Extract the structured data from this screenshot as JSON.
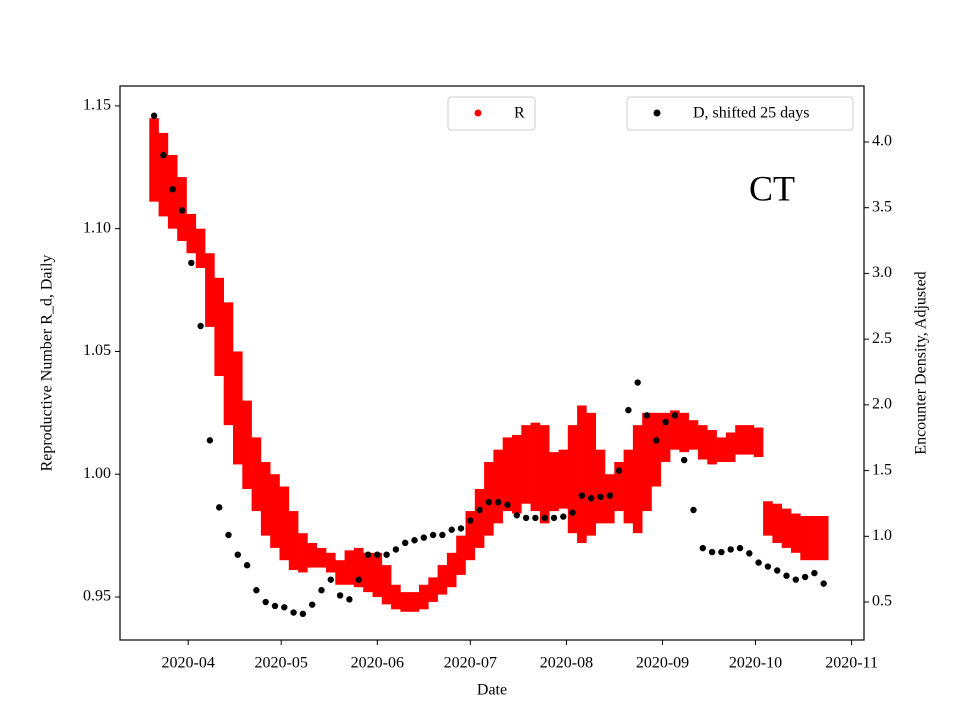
{
  "chart_data": {
    "type": "errorbar-scatter",
    "xlabel": "Date",
    "ylabel": "Reproductive Number R_d, Daily",
    "y2label": "Encounter Density, Adjusted",
    "annotation": "CT",
    "x": [
      "2020-03-21",
      "2020-03-24",
      "2020-03-27",
      "2020-03-30",
      "2020-04-02",
      "2020-04-05",
      "2020-04-08",
      "2020-04-11",
      "2020-04-14",
      "2020-04-17",
      "2020-04-20",
      "2020-04-23",
      "2020-04-26",
      "2020-04-29",
      "2020-05-02",
      "2020-05-05",
      "2020-05-08",
      "2020-05-11",
      "2020-05-14",
      "2020-05-17",
      "2020-05-20",
      "2020-05-23",
      "2020-05-26",
      "2020-05-29",
      "2020-06-01",
      "2020-06-04",
      "2020-06-07",
      "2020-06-10",
      "2020-06-13",
      "2020-06-16",
      "2020-06-19",
      "2020-06-22",
      "2020-06-25",
      "2020-06-28",
      "2020-07-01",
      "2020-07-04",
      "2020-07-07",
      "2020-07-10",
      "2020-07-13",
      "2020-07-16",
      "2020-07-19",
      "2020-07-22",
      "2020-07-25",
      "2020-07-28",
      "2020-07-31",
      "2020-08-03",
      "2020-08-06",
      "2020-08-09",
      "2020-08-12",
      "2020-08-15",
      "2020-08-18",
      "2020-08-21",
      "2020-08-24",
      "2020-08-27",
      "2020-08-30",
      "2020-09-02",
      "2020-09-05",
      "2020-09-08",
      "2020-09-11",
      "2020-09-14",
      "2020-09-17",
      "2020-09-20",
      "2020-09-23",
      "2020-09-26",
      "2020-09-29",
      "2020-10-02",
      "2020-10-05",
      "2020-10-08",
      "2020-10-11",
      "2020-10-14",
      "2020-10-17",
      "2020-10-20",
      "2020-10-23"
    ],
    "series": [
      {
        "name": "R",
        "color": "#ff0000",
        "axis": "y",
        "values": [
          1.128,
          1.122,
          1.115,
          1.108,
          1.098,
          1.092,
          1.075,
          1.06,
          1.045,
          1.027,
          1.012,
          1.0,
          0.99,
          0.985,
          0.98,
          0.973,
          0.968,
          0.967,
          0.966,
          0.964,
          0.96,
          0.962,
          0.962,
          0.96,
          0.959,
          0.955,
          0.95,
          0.948,
          0.948,
          0.95,
          0.953,
          0.957,
          0.961,
          0.967,
          0.975,
          0.982,
          0.99,
          0.995,
          1.0,
          1.0,
          1.004,
          1.003,
          1.0,
          0.997,
          0.998,
          0.998,
          1.0,
          1.0,
          0.995,
          0.99,
          0.995,
          0.995,
          0.998,
          1.005,
          1.01,
          1.015,
          1.018,
          1.017,
          1.016,
          1.013,
          1.011,
          1.01,
          1.011,
          1.014,
          1.014,
          1.013,
          0.982,
          0.98,
          0.978,
          0.976,
          0.974,
          0.974,
          0.974
        ],
        "errors": [
          0.017,
          0.017,
          0.015,
          0.013,
          0.008,
          0.008,
          0.015,
          0.02,
          0.025,
          0.023,
          0.018,
          0.015,
          0.015,
          0.015,
          0.015,
          0.012,
          0.008,
          0.005,
          0.004,
          0.004,
          0.005,
          0.007,
          0.008,
          0.008,
          0.009,
          0.008,
          0.005,
          0.004,
          0.004,
          0.005,
          0.005,
          0.006,
          0.007,
          0.008,
          0.01,
          0.012,
          0.015,
          0.015,
          0.015,
          0.016,
          0.016,
          0.018,
          0.02,
          0.012,
          0.012,
          0.022,
          0.028,
          0.025,
          0.015,
          0.01,
          0.01,
          0.015,
          0.022,
          0.02,
          0.015,
          0.01,
          0.008,
          0.008,
          0.006,
          0.007,
          0.007,
          0.005,
          0.006,
          0.006,
          0.006,
          0.006,
          0.007,
          0.008,
          0.008,
          0.008,
          0.009,
          0.009,
          0.009
        ]
      },
      {
        "name": "D, shifted 25 days",
        "color": "#000000",
        "axis": "y2",
        "values": [
          4.2,
          3.9,
          3.64,
          3.48,
          3.08,
          2.6,
          1.73,
          1.22,
          1.01,
          0.86,
          0.78,
          0.59,
          0.5,
          0.47,
          0.46,
          0.42,
          0.41,
          0.48,
          0.59,
          0.67,
          0.55,
          0.52,
          0.67,
          0.86,
          0.86,
          0.86,
          0.9,
          0.95,
          0.97,
          0.99,
          1.01,
          1.01,
          1.05,
          1.06,
          1.12,
          1.2,
          1.26,
          1.26,
          1.24,
          1.16,
          1.14,
          1.14,
          1.14,
          1.14,
          1.15,
          1.18,
          1.31,
          1.29,
          1.3,
          1.31,
          1.5,
          1.96,
          2.17,
          1.92,
          1.73,
          1.87,
          1.92,
          1.58,
          1.2,
          0.91,
          0.88,
          0.88,
          0.9,
          0.91,
          0.87,
          0.8,
          0.77,
          0.74,
          0.7,
          0.67,
          0.69,
          0.72,
          0.64
        ]
      }
    ],
    "xlim": [
      "2020-03-10",
      "2020-11-05"
    ],
    "xticks": [
      {
        "value": "2020-04-01",
        "label": "2020-04"
      },
      {
        "value": "2020-05-01",
        "label": "2020-05"
      },
      {
        "value": "2020-06-01",
        "label": "2020-06"
      },
      {
        "value": "2020-07-01",
        "label": "2020-07"
      },
      {
        "value": "2020-08-01",
        "label": "2020-08"
      },
      {
        "value": "2020-09-01",
        "label": "2020-09"
      },
      {
        "value": "2020-10-01",
        "label": "2020-10"
      },
      {
        "value": "2020-11-01",
        "label": "2020-11"
      }
    ],
    "ylim": [
      0.9325,
      1.1581
    ],
    "yticks": [
      0.95,
      {
        "value": 1.0,
        "label": "1.00"
      },
      1.05,
      {
        "value": 1.1,
        "label": "1.10"
      },
      1.15
    ],
    "y2lim": [
      0.211,
      4.426
    ],
    "y2ticks": [
      0.5,
      {
        "value": 1.0,
        "label": "1.0"
      },
      1.5,
      {
        "value": 2.0,
        "label": "2.0"
      },
      2.5,
      {
        "value": 3.0,
        "label": "3.0"
      },
      3.5,
      {
        "value": 4.0,
        "label": "4.0"
      }
    ],
    "ycolor": "#ff0000"
  }
}
